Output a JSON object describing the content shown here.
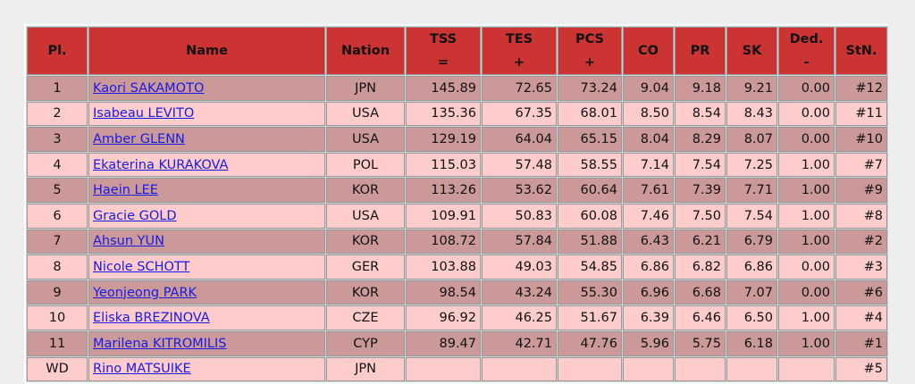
{
  "headers": {
    "pl": "Pl.",
    "name": "Name",
    "nation": "Nation",
    "tss_top": "TSS",
    "tss_bottom": "=",
    "tes_top": "TES",
    "tes_bottom": "+",
    "pcs_top": "PCS",
    "pcs_bottom": "+",
    "co": "CO",
    "pr": "PR",
    "sk": "SK",
    "ded_top": "Ded.",
    "ded_bottom": "-",
    "stn": "StN."
  },
  "rows": [
    {
      "pl": "1",
      "name": "Kaori SAKAMOTO",
      "nation": "JPN",
      "tss": "145.89",
      "tes": "72.65",
      "pcs": "73.24",
      "co": "9.04",
      "pr": "9.18",
      "sk": "9.21",
      "ded": "0.00",
      "stn": "#12"
    },
    {
      "pl": "2",
      "name": "Isabeau LEVITO",
      "nation": "USA",
      "tss": "135.36",
      "tes": "67.35",
      "pcs": "68.01",
      "co": "8.50",
      "pr": "8.54",
      "sk": "8.43",
      "ded": "0.00",
      "stn": "#11"
    },
    {
      "pl": "3",
      "name": "Amber GLENN",
      "nation": "USA",
      "tss": "129.19",
      "tes": "64.04",
      "pcs": "65.15",
      "co": "8.04",
      "pr": "8.29",
      "sk": "8.07",
      "ded": "0.00",
      "stn": "#10"
    },
    {
      "pl": "4",
      "name": "Ekaterina KURAKOVA",
      "nation": "POL",
      "tss": "115.03",
      "tes": "57.48",
      "pcs": "58.55",
      "co": "7.14",
      "pr": "7.54",
      "sk": "7.25",
      "ded": "1.00",
      "stn": "#7"
    },
    {
      "pl": "5",
      "name": "Haein LEE",
      "nation": "KOR",
      "tss": "113.26",
      "tes": "53.62",
      "pcs": "60.64",
      "co": "7.61",
      "pr": "7.39",
      "sk": "7.71",
      "ded": "1.00",
      "stn": "#9"
    },
    {
      "pl": "6",
      "name": "Gracie GOLD",
      "nation": "USA",
      "tss": "109.91",
      "tes": "50.83",
      "pcs": "60.08",
      "co": "7.46",
      "pr": "7.50",
      "sk": "7.54",
      "ded": "1.00",
      "stn": "#8"
    },
    {
      "pl": "7",
      "name": "Ahsun YUN",
      "nation": "KOR",
      "tss": "108.72",
      "tes": "57.84",
      "pcs": "51.88",
      "co": "6.43",
      "pr": "6.21",
      "sk": "6.79",
      "ded": "1.00",
      "stn": "#2"
    },
    {
      "pl": "8",
      "name": "Nicole SCHOTT",
      "nation": "GER",
      "tss": "103.88",
      "tes": "49.03",
      "pcs": "54.85",
      "co": "6.86",
      "pr": "6.82",
      "sk": "6.86",
      "ded": "0.00",
      "stn": "#3"
    },
    {
      "pl": "9",
      "name": "Yeonjeong PARK",
      "nation": "KOR",
      "tss": "98.54",
      "tes": "43.24",
      "pcs": "55.30",
      "co": "6.96",
      "pr": "6.68",
      "sk": "7.07",
      "ded": "0.00",
      "stn": "#6"
    },
    {
      "pl": "10",
      "name": "Eliska BREZINOVA",
      "nation": "CZE",
      "tss": "96.92",
      "tes": "46.25",
      "pcs": "51.67",
      "co": "6.39",
      "pr": "6.46",
      "sk": "6.50",
      "ded": "1.00",
      "stn": "#4"
    },
    {
      "pl": "11",
      "name": "Marilena KITROMILIS",
      "nation": "CYP",
      "tss": "89.47",
      "tes": "42.71",
      "pcs": "47.76",
      "co": "5.96",
      "pr": "5.75",
      "sk": "6.18",
      "ded": "1.00",
      "stn": "#1"
    },
    {
      "pl": "WD",
      "name": "Rino MATSUIKE",
      "nation": "JPN",
      "tss": "",
      "tes": "",
      "pcs": "",
      "co": "",
      "pr": "",
      "sk": "",
      "ded": "",
      "stn": "#5"
    }
  ]
}
